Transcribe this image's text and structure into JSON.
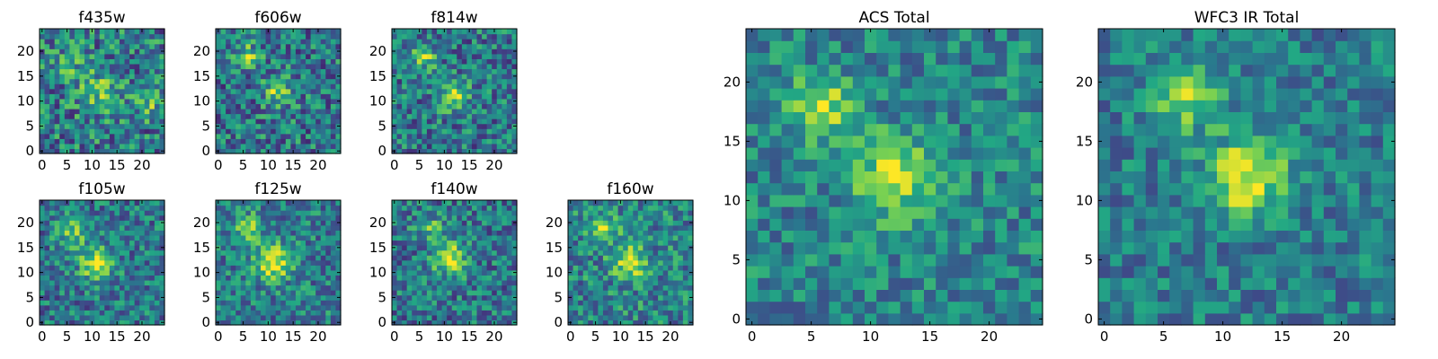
{
  "figure": {
    "background": "#ffffff",
    "colormap": "viridis",
    "colormap_stops": [
      "#440154",
      "#414487",
      "#2a788e",
      "#22a884",
      "#7ad151",
      "#fde725"
    ]
  },
  "chart_data": [
    {
      "type": "heatmap",
      "title": "f435w",
      "grid": [
        25,
        25
      ],
      "xticks": [
        "0",
        "5",
        "10",
        "15",
        "20"
      ],
      "yticks": [
        "0",
        "5",
        "10",
        "15",
        "20"
      ],
      "xlim": [
        0,
        25
      ],
      "ylim": [
        0,
        25
      ],
      "seed": 11,
      "noise": 0.62,
      "base": 0.42,
      "sources": [
        {
          "x": 12,
          "y": 12,
          "amp": 0.28,
          "sigma": 3.0
        },
        {
          "x": 6,
          "y": 17,
          "amp": 0.18,
          "sigma": 2.2
        },
        {
          "x": 22,
          "y": 9,
          "amp": 0.22,
          "sigma": 1.8
        }
      ]
    },
    {
      "type": "heatmap",
      "title": "f606w",
      "grid": [
        25,
        25
      ],
      "xticks": [
        "0",
        "5",
        "10",
        "15",
        "20"
      ],
      "yticks": [
        "0",
        "5",
        "10",
        "15",
        "20"
      ],
      "xlim": [
        0,
        25
      ],
      "ylim": [
        0,
        25
      ],
      "seed": 23,
      "noise": 0.58,
      "base": 0.4,
      "sources": [
        {
          "x": 6,
          "y": 19,
          "amp": 0.4,
          "sigma": 1.6
        },
        {
          "x": 12,
          "y": 12,
          "amp": 0.4,
          "sigma": 2.0
        }
      ]
    },
    {
      "type": "heatmap",
      "title": "f814w",
      "grid": [
        25,
        25
      ],
      "xticks": [
        "0",
        "5",
        "10",
        "15",
        "20"
      ],
      "yticks": [
        "0",
        "5",
        "10",
        "15",
        "20"
      ],
      "xlim": [
        0,
        25
      ],
      "ylim": [
        0,
        25
      ],
      "seed": 37,
      "noise": 0.55,
      "base": 0.4,
      "sources": [
        {
          "x": 6,
          "y": 19,
          "amp": 0.42,
          "sigma": 1.7
        },
        {
          "x": 12,
          "y": 11,
          "amp": 0.45,
          "sigma": 2.0
        }
      ]
    },
    {
      "type": "heatmap",
      "title": "f105w",
      "grid": [
        25,
        25
      ],
      "xticks": [
        "0",
        "5",
        "10",
        "15",
        "20"
      ],
      "yticks": [
        "0",
        "5",
        "10",
        "15",
        "20"
      ],
      "xlim": [
        0,
        25
      ],
      "ylim": [
        0,
        25
      ],
      "seed": 41,
      "noise": 0.5,
      "base": 0.4,
      "sources": [
        {
          "x": 6,
          "y": 18,
          "amp": 0.38,
          "sigma": 2.0
        },
        {
          "x": 11,
          "y": 12,
          "amp": 0.55,
          "sigma": 2.3
        }
      ]
    },
    {
      "type": "heatmap",
      "title": "f125w",
      "grid": [
        25,
        25
      ],
      "xticks": [
        "0",
        "5",
        "10",
        "15",
        "20"
      ],
      "yticks": [
        "0",
        "5",
        "10",
        "15",
        "20"
      ],
      "xlim": [
        0,
        25
      ],
      "ylim": [
        0,
        25
      ],
      "seed": 53,
      "noise": 0.5,
      "base": 0.42,
      "sources": [
        {
          "x": 6,
          "y": 19,
          "amp": 0.35,
          "sigma": 2.0
        },
        {
          "x": 11,
          "y": 12,
          "amp": 0.55,
          "sigma": 2.5
        }
      ]
    },
    {
      "type": "heatmap",
      "title": "f140w",
      "grid": [
        25,
        25
      ],
      "xticks": [
        "0",
        "5",
        "10",
        "15",
        "20"
      ],
      "yticks": [
        "0",
        "5",
        "10",
        "15",
        "20"
      ],
      "xlim": [
        0,
        25
      ],
      "ylim": [
        0,
        25
      ],
      "seed": 67,
      "noise": 0.52,
      "base": 0.4,
      "sources": [
        {
          "x": 7,
          "y": 19,
          "amp": 0.3,
          "sigma": 1.8
        },
        {
          "x": 11,
          "y": 13,
          "amp": 0.55,
          "sigma": 2.3
        }
      ]
    },
    {
      "type": "heatmap",
      "title": "f160w",
      "grid": [
        25,
        25
      ],
      "xticks": [
        "0",
        "5",
        "10",
        "15",
        "20"
      ],
      "yticks": [
        "0",
        "5",
        "10",
        "15",
        "20"
      ],
      "xlim": [
        0,
        25
      ],
      "ylim": [
        0,
        25
      ],
      "seed": 79,
      "noise": 0.52,
      "base": 0.45,
      "sources": [
        {
          "x": 7,
          "y": 19,
          "amp": 0.35,
          "sigma": 2.0
        },
        {
          "x": 12,
          "y": 12,
          "amp": 0.5,
          "sigma": 2.3
        }
      ]
    },
    {
      "type": "heatmap",
      "title": "ACS Total",
      "grid": [
        25,
        25
      ],
      "xticks": [
        "0",
        "5",
        "10",
        "15",
        "20"
      ],
      "yticks": [
        "0",
        "5",
        "10",
        "15",
        "20"
      ],
      "xlim": [
        0,
        25
      ],
      "ylim": [
        0,
        25
      ],
      "seed": 97,
      "noise": 0.42,
      "base": 0.45,
      "sources": [
        {
          "x": 6,
          "y": 18,
          "amp": 0.45,
          "sigma": 1.8
        },
        {
          "x": 12,
          "y": 12,
          "amp": 0.48,
          "sigma": 2.3
        }
      ]
    },
    {
      "type": "heatmap",
      "title": "WFC3 IR Total",
      "grid": [
        25,
        25
      ],
      "xticks": [
        "0",
        "5",
        "10",
        "15",
        "20"
      ],
      "yticks": [
        "0",
        "5",
        "10",
        "15",
        "20"
      ],
      "xlim": [
        0,
        25
      ],
      "ylim": [
        0,
        25
      ],
      "seed": 113,
      "noise": 0.4,
      "base": 0.42,
      "sources": [
        {
          "x": 7,
          "y": 19,
          "amp": 0.4,
          "sigma": 2.0
        },
        {
          "x": 12,
          "y": 12,
          "amp": 0.55,
          "sigma": 2.3
        }
      ]
    }
  ]
}
